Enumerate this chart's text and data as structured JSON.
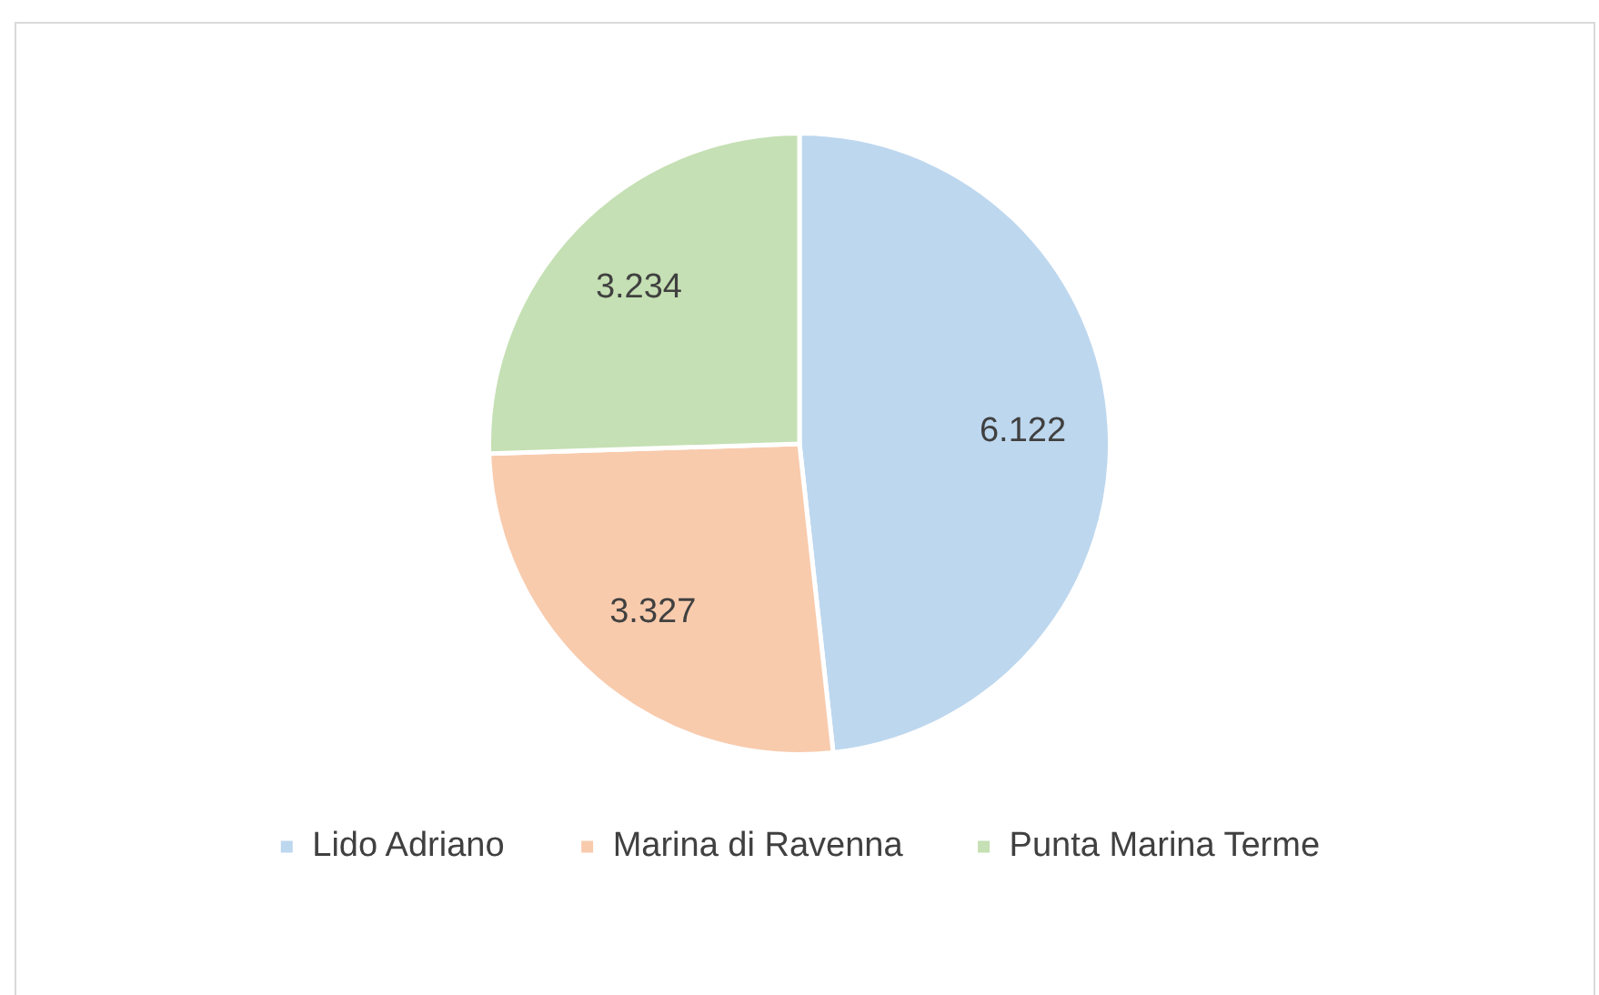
{
  "chart_data": {
    "type": "pie",
    "categories": [
      "Lido Adriano",
      "Marina di Ravenna",
      "Punta Marina Terme"
    ],
    "values": [
      6.122,
      3.327,
      3.234
    ],
    "colors": [
      "#bdd7ee",
      "#f8cbad",
      "#c5e0b4"
    ],
    "data_labels": true,
    "legend": "bottom"
  }
}
